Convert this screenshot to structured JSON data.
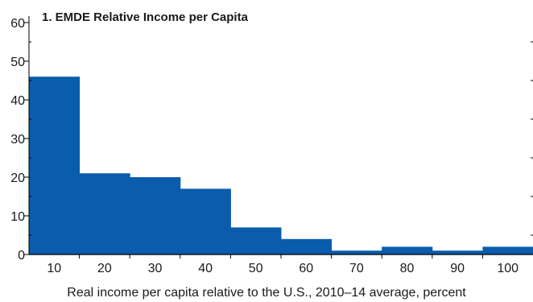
{
  "chart_data": {
    "type": "bar",
    "title": "1. EMDE Relative Income per Capita",
    "xlabel": "Real income per capita relative to the U.S., 2010–14 average, percent",
    "ylabel": "",
    "categories": [
      "10",
      "20",
      "30",
      "40",
      "50",
      "60",
      "70",
      "80",
      "90",
      "100"
    ],
    "values": [
      46,
      21,
      20,
      17,
      7,
      4,
      1,
      2,
      1,
      2
    ],
    "ylim": [
      0,
      60
    ],
    "yticks": [
      "0",
      "10",
      "20",
      "30",
      "40",
      "50",
      "60"
    ],
    "bar_color": "#0a5cad",
    "grid": false,
    "legend": "none"
  }
}
